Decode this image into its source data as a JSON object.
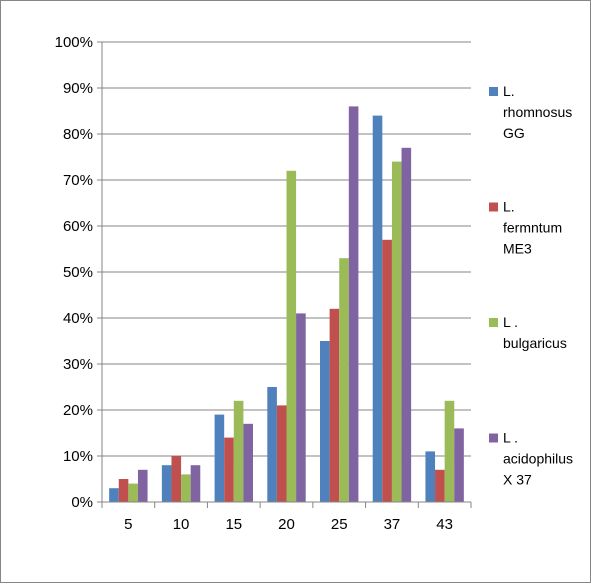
{
  "chart_data": {
    "type": "bar",
    "title": "",
    "xlabel": "",
    "ylabel": "",
    "categories": [
      "5",
      "10",
      "15",
      "20",
      "25",
      "37",
      "43"
    ],
    "ylim": [
      0,
      100
    ],
    "y_tick_labels": [
      "0%",
      "10%",
      "20%",
      "30%",
      "40%",
      "50%",
      "60%",
      "70%",
      "80%",
      "90%",
      "100%"
    ],
    "grid": true,
    "legend_position": "right",
    "series": [
      {
        "name": "L. rhomnosus GG",
        "legend_lines": [
          "L.",
          "rhomnosus",
          "GG"
        ],
        "color": "#4F81BD",
        "values": [
          3,
          8,
          19,
          25,
          35,
          84,
          11
        ]
      },
      {
        "name": "L. fermntum ME3",
        "legend_lines": [
          "L.",
          "fermntum",
          "ME3"
        ],
        "color": "#C0504D",
        "values": [
          5,
          10,
          14,
          21,
          42,
          57,
          7
        ]
      },
      {
        "name": "L . bulgaricus",
        "legend_lines": [
          "L .",
          "bulgaricus"
        ],
        "color": "#9BBB59",
        "values": [
          4,
          6,
          22,
          72,
          53,
          74,
          22
        ]
      },
      {
        "name": "L . acidophilus X 37",
        "legend_lines": [
          "L .",
          "acidophilus",
          "X 37"
        ],
        "color": "#8064A2",
        "values": [
          7,
          8,
          17,
          41,
          86,
          77,
          16
        ]
      }
    ]
  }
}
